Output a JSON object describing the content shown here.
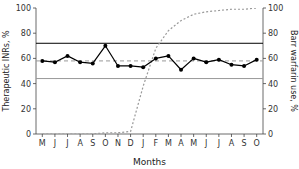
{
  "chart_data": {
    "type": "line",
    "x_label": "Months",
    "y_label": "Therapeutic INRs, %",
    "y2_label": "Barr warfarin use, %",
    "categories": [
      "M",
      "J",
      "J",
      "A",
      "S",
      "O",
      "N",
      "D",
      "J",
      "F",
      "M",
      "A",
      "M",
      "J",
      "J",
      "A",
      "S",
      "O"
    ],
    "series": [
      {
        "color": "#000000",
        "marker": "circle",
        "line_style": "solid",
        "values": [
          58,
          57,
          62,
          57,
          56,
          70,
          54,
          54,
          53,
          60,
          62,
          51,
          60,
          57,
          59,
          55,
          54,
          59
        ]
      },
      {
        "color": "#999999",
        "line_style": "dotted",
        "axis": "y2",
        "values": [
          0,
          0,
          0,
          0,
          0,
          1,
          1,
          2,
          38,
          68,
          82,
          90,
          95,
          97,
          98,
          99,
          99,
          100
        ]
      }
    ],
    "reference_lines": [
      {
        "value": 72,
        "color": "#000000",
        "line_style": "solid"
      },
      {
        "value": 44,
        "color": "#999999",
        "line_style": "solid"
      },
      {
        "value": 58,
        "color": "#999999",
        "line_style": "dashed"
      }
    ],
    "ylim": [
      0,
      100
    ],
    "yticks": [
      0,
      20,
      40,
      60,
      80,
      100
    ],
    "y2lim": [
      0,
      100
    ],
    "y2ticks": [
      0,
      20,
      40,
      60,
      80,
      100
    ],
    "grid": false
  }
}
